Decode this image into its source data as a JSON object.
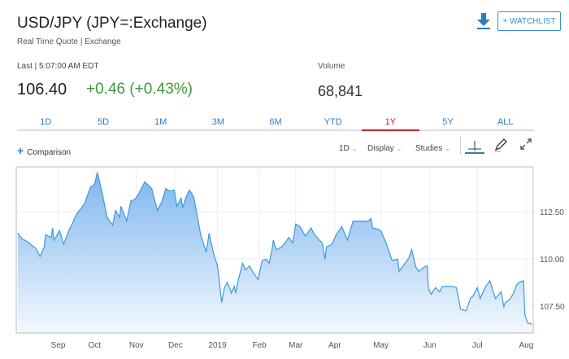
{
  "header": {
    "title": "USD/JPY (JPY=:Exchange)",
    "subtitle": "Real Time Quote | Exchange",
    "watchlist_label": "+ WATCHLIST",
    "download_icon": "download-icon"
  },
  "quote": {
    "last_label": "Last | 5:07:00 AM EDT",
    "price": "106.40",
    "change": "+0.46 (+0.43%)",
    "volume_label": "Volume",
    "volume": "68,841"
  },
  "colors": {
    "accent": "#2f7bbf",
    "positive": "#3b9b3b",
    "active_tab": "#d02020",
    "line": "#3a9ad9"
  },
  "tabs": [
    {
      "label": "1D"
    },
    {
      "label": "5D"
    },
    {
      "label": "1M"
    },
    {
      "label": "3M"
    },
    {
      "label": "6M"
    },
    {
      "label": "YTD"
    },
    {
      "label": "1Y",
      "active": true
    },
    {
      "label": "5Y"
    },
    {
      "label": "ALL"
    }
  ],
  "toolbar": {
    "comparison": "Comparison",
    "interval": "1D",
    "display": "Display",
    "studies": "Studies"
  },
  "chart_data": {
    "type": "area",
    "title": "USD/JPY 1Y",
    "x_unit": "days since 2018-09-01",
    "xlim": [
      -29,
      341
    ],
    "ylim": [
      106.08,
      114.87
    ],
    "y_ticks": [
      107.5,
      110.0,
      112.5
    ],
    "y_tick_labels": [
      "107.50",
      "110.00",
      "112.50"
    ],
    "x_ticks": [
      {
        "label": "Sep",
        "x": 1
      },
      {
        "label": "Oct",
        "x": 27
      },
      {
        "label": "Nov",
        "x": 57
      },
      {
        "label": "Dec",
        "x": 85
      },
      {
        "label": "2019",
        "x": 115
      },
      {
        "label": "Feb",
        "x": 145
      },
      {
        "label": "Mar",
        "x": 171
      },
      {
        "label": "Apr",
        "x": 199
      },
      {
        "label": "May",
        "x": 232
      },
      {
        "label": "Jun",
        "x": 267
      },
      {
        "label": "Jul",
        "x": 301
      },
      {
        "label": "Aug",
        "x": 336
      }
    ],
    "grid": true,
    "x": [
      -28,
      -25,
      -21,
      -19,
      -15,
      -12,
      -9,
      -8,
      -4,
      -3,
      -2,
      2,
      5,
      9,
      11,
      14,
      20,
      24,
      27,
      29,
      32,
      36,
      40,
      42,
      45,
      46,
      50,
      53,
      56,
      59,
      63,
      68,
      72,
      75,
      78,
      81,
      84,
      86,
      89,
      90,
      93,
      95,
      98,
      100,
      103,
      107,
      109,
      112,
      115,
      116,
      118,
      120,
      122,
      125,
      127,
      128,
      130,
      133,
      135,
      138,
      140,
      144,
      147,
      150,
      152,
      154,
      155,
      157,
      161,
      164,
      166,
      169,
      171,
      174,
      178,
      182,
      184,
      187,
      190,
      192,
      193,
      197,
      200,
      204,
      208,
      212,
      217,
      223,
      225,
      226,
      230,
      232,
      236,
      240,
      244,
      245,
      248,
      252,
      254,
      257,
      259,
      263,
      265,
      266,
      268,
      271,
      274,
      276,
      283,
      286,
      289,
      293,
      296,
      298,
      301,
      303,
      307,
      310,
      312,
      314,
      318,
      320,
      321,
      324,
      327,
      329,
      331,
      334,
      335,
      337,
      340
    ],
    "y": [
      111.38,
      111.06,
      110.92,
      110.78,
      110.56,
      110.13,
      110.63,
      111.28,
      111.13,
      111.64,
      110.99,
      111.49,
      110.78,
      111.57,
      111.85,
      112.36,
      112.93,
      113.79,
      113.94,
      114.58,
      113.65,
      112.21,
      111.78,
      112.57,
      112.21,
      112.79,
      112.0,
      113.07,
      113.15,
      113.5,
      114.08,
      113.72,
      112.57,
      113.0,
      113.72,
      113.58,
      113.65,
      112.79,
      113.22,
      112.72,
      113.36,
      113.65,
      113.29,
      112.5,
      111.28,
      110.35,
      111.35,
      110.35,
      109.63,
      109.05,
      107.69,
      108.48,
      108.76,
      108.19,
      108.55,
      108.19,
      108.91,
      109.77,
      109.41,
      109.63,
      109.34,
      108.91,
      109.91,
      109.99,
      109.77,
      110.49,
      110.99,
      110.49,
      110.63,
      110.92,
      111.13,
      110.85,
      111.85,
      111.71,
      111.21,
      111.64,
      111.35,
      111.06,
      110.85,
      109.99,
      110.63,
      110.78,
      111.28,
      111.71,
      110.99,
      112.0,
      112.0,
      112.0,
      112.14,
      111.64,
      111.57,
      111.49,
      110.78,
      109.91,
      109.99,
      109.34,
      109.63,
      110.06,
      110.49,
      109.56,
      109.34,
      109.56,
      109.63,
      108.41,
      108.12,
      108.48,
      108.26,
      108.55,
      108.55,
      108.48,
      107.33,
      107.25,
      107.9,
      108.05,
      108.48,
      107.9,
      108.55,
      108.84,
      108.33,
      107.9,
      108.26,
      107.47,
      107.69,
      107.83,
      108.19,
      108.62,
      108.76,
      108.84,
      107.04,
      106.61,
      106.54
    ]
  }
}
